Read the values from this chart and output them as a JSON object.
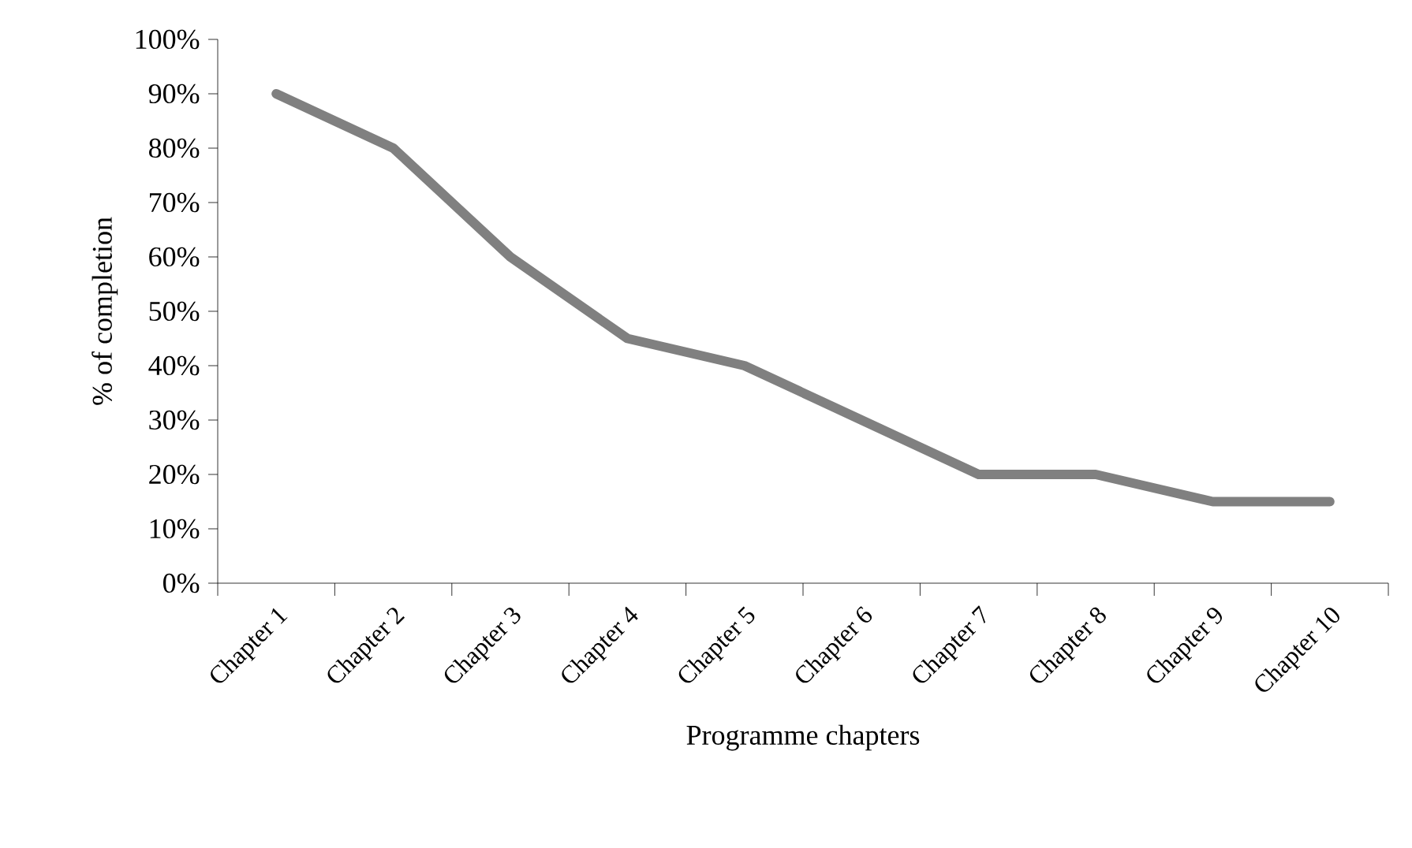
{
  "chart_data": {
    "type": "line",
    "xlabel": "Programme chapters",
    "ylabel": "% of completion",
    "categories": [
      "Chapter 1",
      "Chapter 2",
      "Chapter 3",
      "Chapter 4",
      "Chapter 5",
      "Chapter 6",
      "Chapter 7",
      "Chapter 8",
      "Chapter 9",
      "Chapter 10"
    ],
    "series": [
      {
        "color": "#808080",
        "values": [
          90,
          80,
          60,
          45,
          40,
          30,
          20,
          20,
          15,
          15
        ]
      }
    ],
    "ylim": [
      0,
      100
    ],
    "yticks": [
      {
        "value": 0,
        "label": "0%"
      },
      {
        "value": 10,
        "label": "10%"
      },
      {
        "value": 20,
        "label": "20%"
      },
      {
        "value": 30,
        "label": "30%"
      },
      {
        "value": 40,
        "label": "40%"
      },
      {
        "value": 50,
        "label": "50%"
      },
      {
        "value": 60,
        "label": "60%"
      },
      {
        "value": 70,
        "label": "70%"
      },
      {
        "value": 80,
        "label": "80%"
      },
      {
        "value": 90,
        "label": "90%"
      },
      {
        "value": 100,
        "label": "100%"
      }
    ],
    "grid": false,
    "marker": "none",
    "line_style": "solid"
  }
}
